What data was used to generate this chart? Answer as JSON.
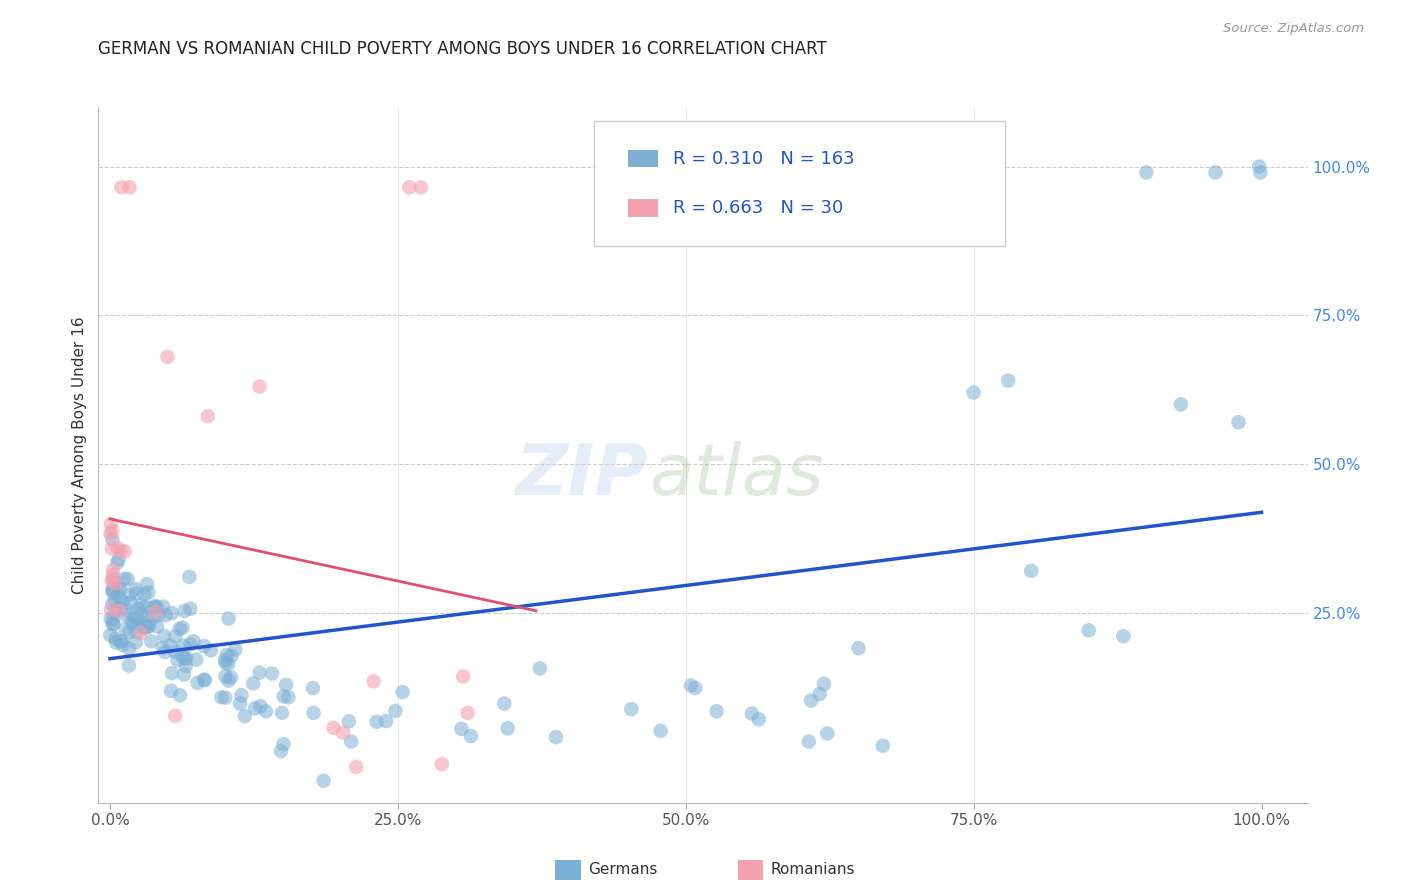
{
  "title": "GERMAN VS ROMANIAN CHILD POVERTY AMONG BOYS UNDER 16 CORRELATION CHART",
  "source": "Source: ZipAtlas.com",
  "ylabel": "Child Poverty Among Boys Under 16",
  "watermark_zip": "ZIP",
  "watermark_atlas": "atlas",
  "xlim": [
    -0.01,
    1.04
  ],
  "ylim": [
    -0.07,
    1.1
  ],
  "xtick_labels": [
    "0.0%",
    "25.0%",
    "50.0%",
    "75.0%",
    "100.0%"
  ],
  "xtick_positions": [
    0.0,
    0.25,
    0.5,
    0.75,
    1.0
  ],
  "ytick_labels": [
    "100.0%",
    "75.0%",
    "50.0%",
    "25.0%"
  ],
  "ytick_positions": [
    1.0,
    0.75,
    0.5,
    0.25
  ],
  "german_R": 0.31,
  "german_N": 163,
  "romanian_R": 0.663,
  "romanian_N": 30,
  "german_color": "#7bafd4",
  "romanian_color": "#f4a0b0",
  "german_trendline_color": "#2255cc",
  "romanian_trendline_color": "#e05070",
  "grid_color": "#cccccc",
  "legend_color": "#2255cc",
  "background_color": "#ffffff"
}
